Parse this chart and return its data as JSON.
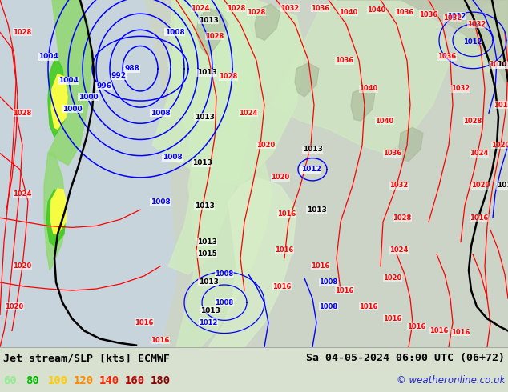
{
  "title_left": "Jet stream/SLP [kts] ECMWF",
  "title_right": "Sa 04-05-2024 06:00 UTC (06+72)",
  "copyright": "© weatheronline.co.uk",
  "legend_values": [
    "60",
    "80",
    "100",
    "120",
    "140",
    "160",
    "180"
  ],
  "legend_colors": [
    "#90ee90",
    "#00bb00",
    "#ffcc00",
    "#ff8800",
    "#ff2200",
    "#bb0000",
    "#880000"
  ],
  "bg_color": "#d8e0d0",
  "ocean_color": "#c8d4dc",
  "land_color": "#c8d4b8",
  "light_green": "#d0ecc0",
  "mid_green": "#90d870",
  "bright_green": "#44cc22",
  "yellow": "#ffff44",
  "figsize": [
    6.34,
    4.9
  ],
  "dpi": 100
}
